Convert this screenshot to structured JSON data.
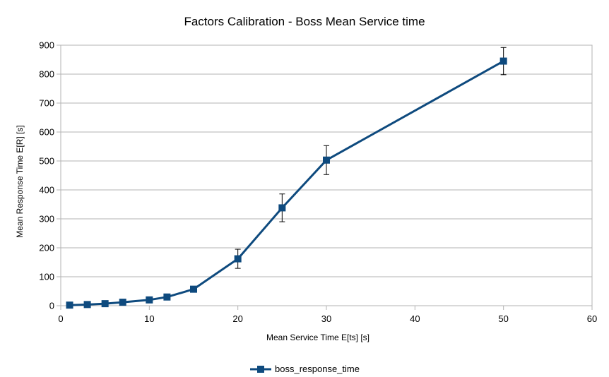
{
  "chart_data": {
    "type": "line",
    "title": "Factors Calibration - Boss Mean Service time",
    "xlabel": "Mean Service Time E[ts] [s]",
    "ylabel": "Mean Response Time E[R] [s]",
    "xlim": [
      0,
      60
    ],
    "ylim": [
      0,
      900
    ],
    "x_ticks": [
      0,
      10,
      20,
      30,
      40,
      50,
      60
    ],
    "y_ticks": [
      0,
      100,
      200,
      300,
      400,
      500,
      600,
      700,
      800,
      900
    ],
    "grid": "horizontal",
    "legend_position": "bottom",
    "series": [
      {
        "name": "boss_response_time",
        "color": "#0e4a7e",
        "marker": "square",
        "x": [
          1,
          3,
          5,
          7,
          10,
          12,
          15,
          20,
          25,
          30,
          50
        ],
        "y": [
          2,
          4,
          7,
          12,
          20,
          30,
          57,
          162,
          338,
          503,
          845
        ],
        "error": [
          0,
          0,
          0,
          0,
          0,
          0,
          0,
          33,
          48,
          50,
          47
        ]
      }
    ]
  }
}
